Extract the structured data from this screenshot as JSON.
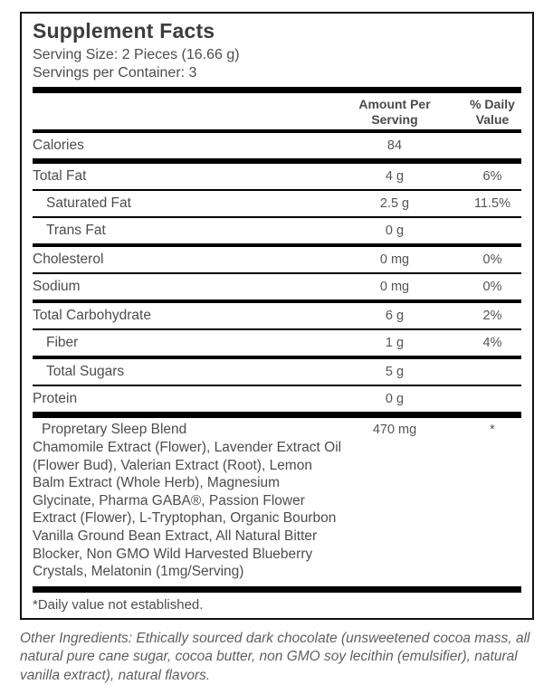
{
  "title": "Supplement Facts",
  "serving": {
    "size": "Serving Size: 2 Pieces (16.66 g)",
    "per_container": "Servings per Container: 3"
  },
  "header": {
    "amount": "Amount Per\nServing",
    "daily": "% Daily\nValue"
  },
  "rows": [
    {
      "label": "Calories",
      "amount": "84",
      "daily": ""
    },
    {
      "label": "Total Fat",
      "amount": "4 g",
      "daily": "6%"
    },
    {
      "label": "Saturated Fat",
      "amount": "2.5 g",
      "daily": "11.5%"
    },
    {
      "label": "Trans Fat",
      "amount": "0 g",
      "daily": ""
    },
    {
      "label": "Cholesterol",
      "amount": "0 mg",
      "daily": "0%"
    },
    {
      "label": "Sodium",
      "amount": "0 mg",
      "daily": "0%"
    },
    {
      "label": "Total Carbohydrate",
      "amount": "6 g",
      "daily": "2%"
    },
    {
      "label": "Fiber",
      "amount": "1 g",
      "daily": "4%"
    },
    {
      "label": "Total Sugars",
      "amount": "5 g",
      "daily": ""
    },
    {
      "label": "Protein",
      "amount": "0 g",
      "daily": ""
    }
  ],
  "blend": {
    "name": "Propretary Sleep Blend",
    "amount": "470 mg",
    "daily": "*",
    "description": "Chamomile Extract (Flower), Lavender Extract Oil\n(Flower Bud), Valerian Extract (Root), Lemon\nBalm Extract (Whole Herb), Magnesium\nGlycinate, Pharma GABA®, Passion Flower\nExtract (Flower), L-Tryptophan, Organic Bourbon\nVanilla Ground Bean Extract, All Natural Bitter\nBlocker, Non GMO Wild Harvested Blueberry\nCrystals, Melatonin (1mg/Serving)"
  },
  "footnote": "*Daily value not established.",
  "other_ingredients": "Other Ingredients: Ethically sourced dark chocolate (unsweetened cocoa mass, all\nnatural pure cane sugar, cocoa butter, non GMO soy lecithin (emulsifier), natural\nvanilla extract), natural flavors.",
  "colors": {
    "rule_line": "#000000",
    "body_text": "#4d4d4d",
    "muted_text": "#5f5f5f"
  }
}
